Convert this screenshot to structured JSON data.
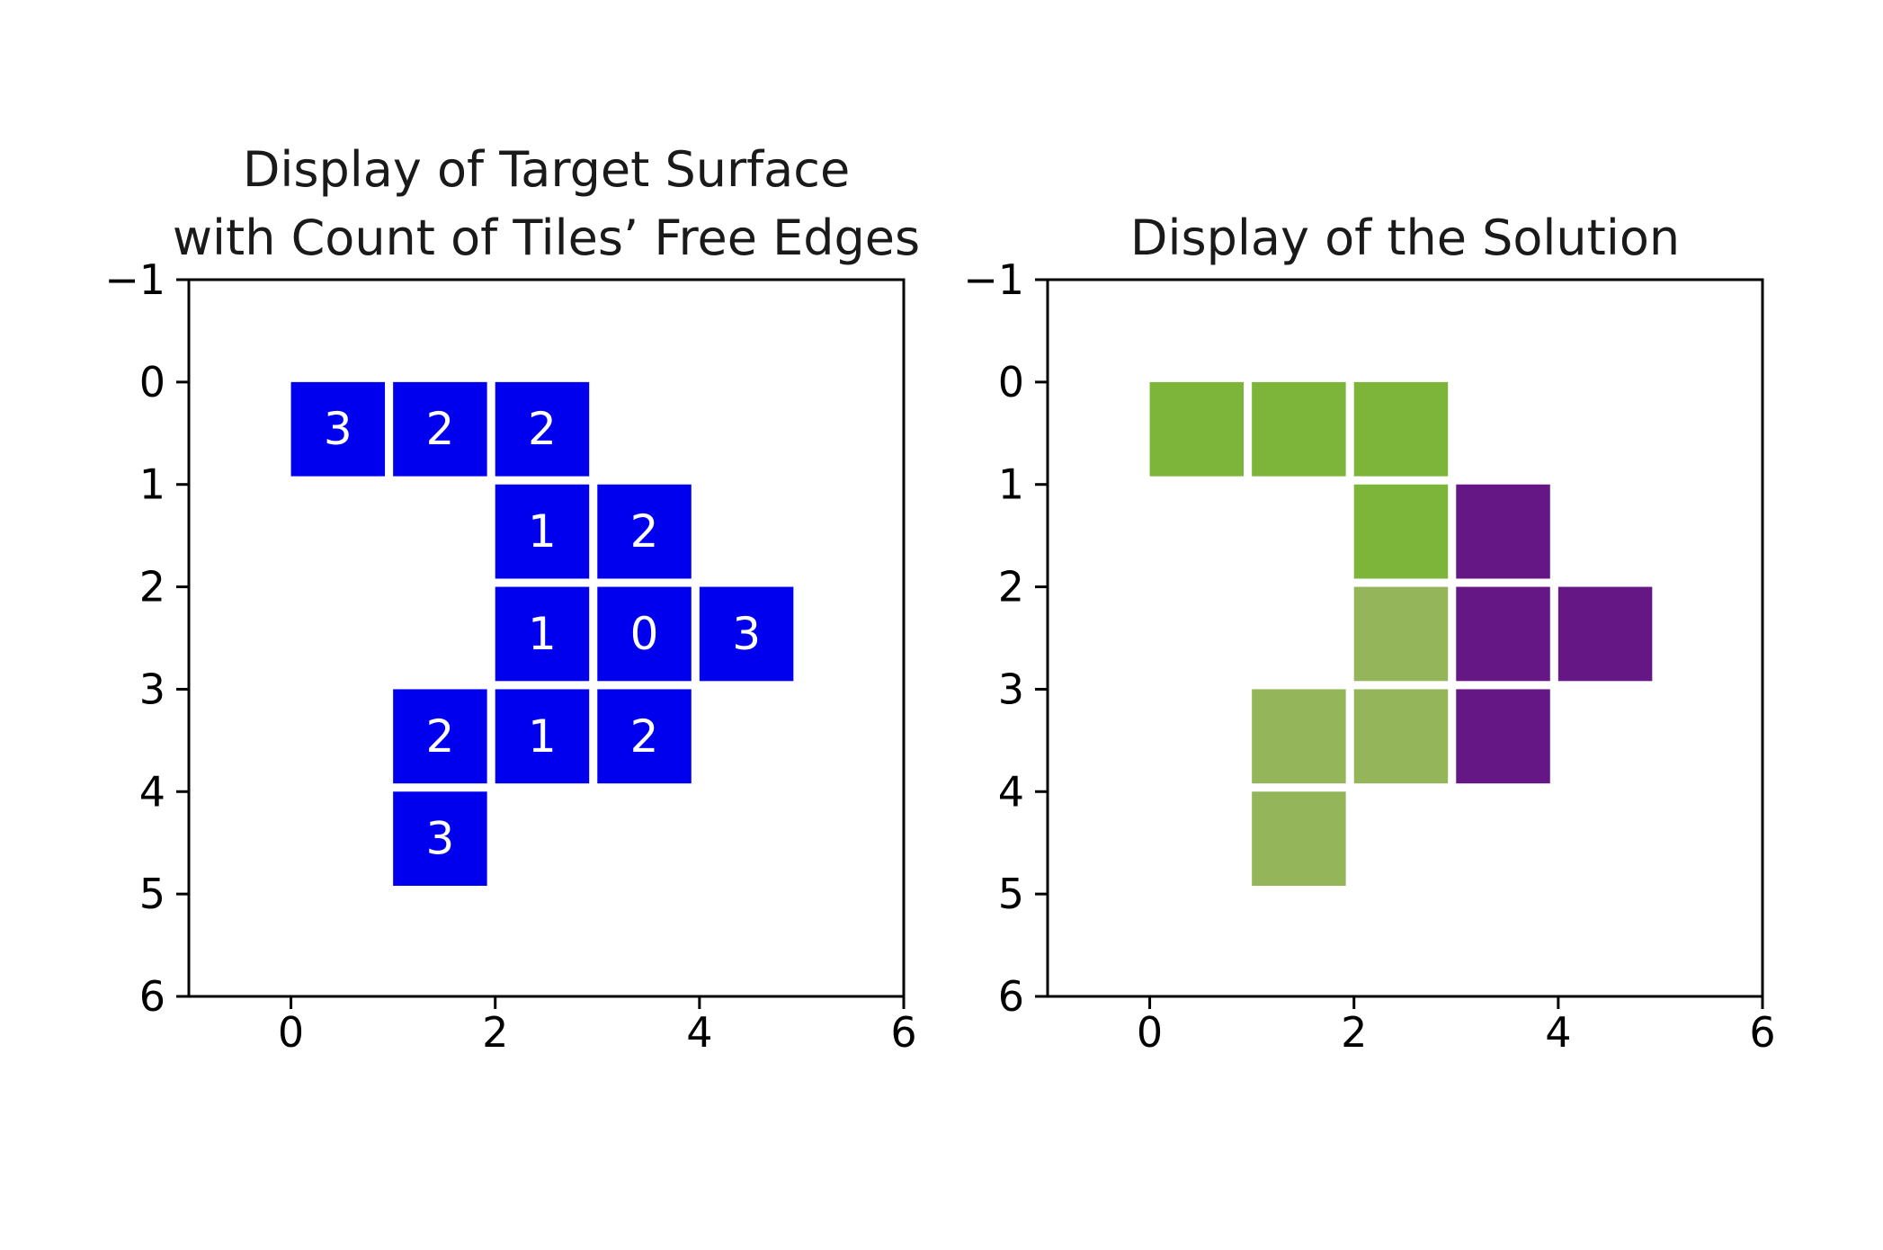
{
  "chart_data": [
    {
      "type": "heatmap",
      "title_lines": [
        "Display of Target Surface",
        "with Count of Tiles’ Free Edges"
      ],
      "xlabel": "",
      "ylabel": "",
      "xlim": [
        -1,
        6
      ],
      "ylim": [
        6,
        -1
      ],
      "y_inverted": true,
      "x_ticks": [
        "0",
        "2",
        "4",
        "6"
      ],
      "y_ticks": [
        "−1",
        "0",
        "1",
        "2",
        "3",
        "4",
        "5",
        "6"
      ],
      "grid": false,
      "cell_color": "#0000ee",
      "label_color": "#ffffff",
      "cells": [
        {
          "x": 0,
          "y": 0,
          "label": "3"
        },
        {
          "x": 1,
          "y": 0,
          "label": "2"
        },
        {
          "x": 2,
          "y": 0,
          "label": "2"
        },
        {
          "x": 2,
          "y": 1,
          "label": "1"
        },
        {
          "x": 3,
          "y": 1,
          "label": "2"
        },
        {
          "x": 2,
          "y": 2,
          "label": "1"
        },
        {
          "x": 3,
          "y": 2,
          "label": "0"
        },
        {
          "x": 4,
          "y": 2,
          "label": "3"
        },
        {
          "x": 1,
          "y": 3,
          "label": "2"
        },
        {
          "x": 2,
          "y": 3,
          "label": "1"
        },
        {
          "x": 3,
          "y": 3,
          "label": "2"
        },
        {
          "x": 1,
          "y": 4,
          "label": "3"
        }
      ]
    },
    {
      "type": "heatmap",
      "title_lines": [
        "Display of the Solution"
      ],
      "xlabel": "",
      "ylabel": "",
      "xlim": [
        -1,
        6
      ],
      "ylim": [
        6,
        -1
      ],
      "y_inverted": true,
      "x_ticks": [
        "0",
        "2",
        "4",
        "6"
      ],
      "y_ticks": [
        "−1",
        "0",
        "1",
        "2",
        "3",
        "4",
        "5",
        "6"
      ],
      "grid": false,
      "cells": [
        {
          "x": 0,
          "y": 0,
          "color": "#7db53a"
        },
        {
          "x": 1,
          "y": 0,
          "color": "#7db53a"
        },
        {
          "x": 2,
          "y": 0,
          "color": "#7db53a"
        },
        {
          "x": 2,
          "y": 1,
          "color": "#7db53a"
        },
        {
          "x": 3,
          "y": 1,
          "color": "#661786"
        },
        {
          "x": 2,
          "y": 2,
          "color": "#95b55b"
        },
        {
          "x": 3,
          "y": 2,
          "color": "#661786"
        },
        {
          "x": 4,
          "y": 2,
          "color": "#661786"
        },
        {
          "x": 1,
          "y": 3,
          "color": "#95b55b"
        },
        {
          "x": 2,
          "y": 3,
          "color": "#95b55b"
        },
        {
          "x": 3,
          "y": 3,
          "color": "#661786"
        },
        {
          "x": 1,
          "y": 4,
          "color": "#95b55b"
        }
      ]
    }
  ]
}
